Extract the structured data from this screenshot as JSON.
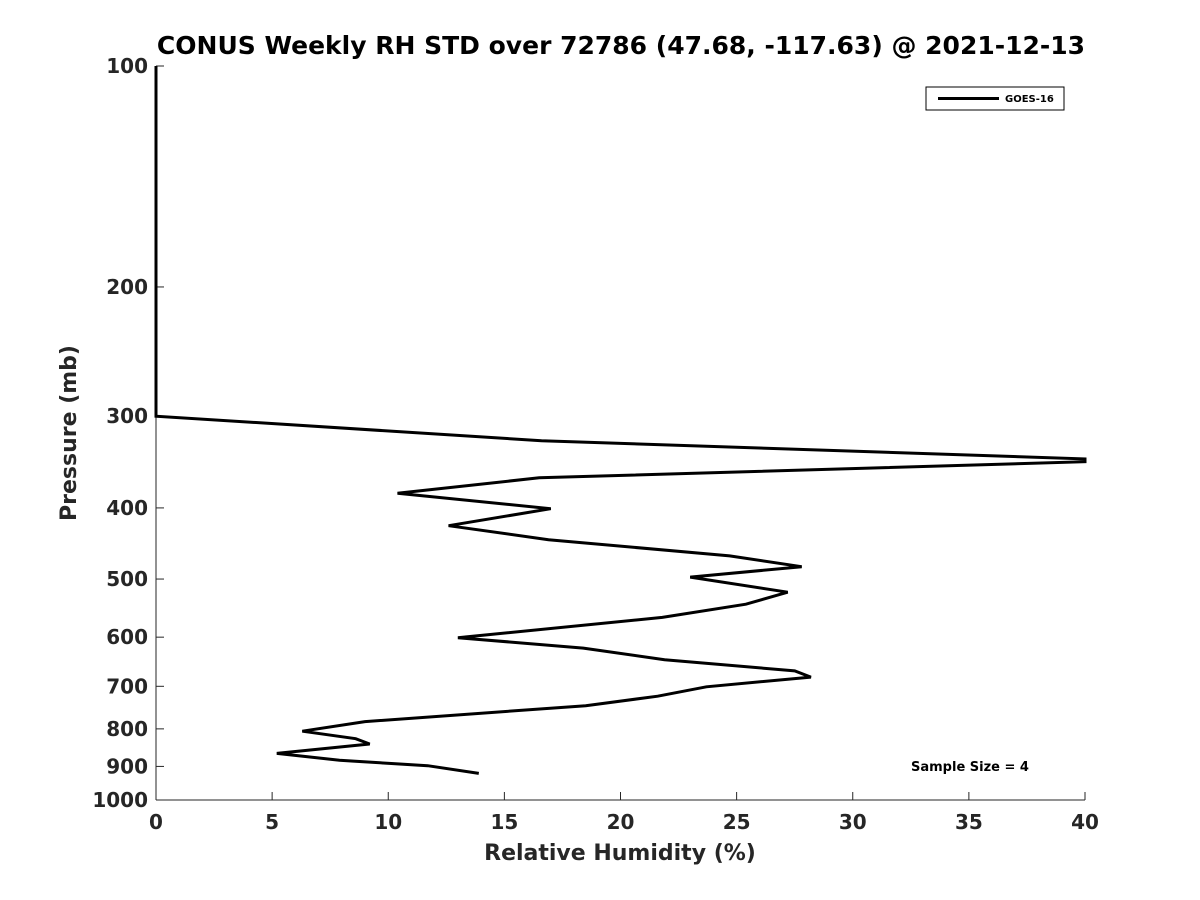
{
  "chart_data": {
    "type": "line",
    "title": "CONUS Weekly RH STD over 72786 (47.68, -117.63) @ 2021-12-13",
    "xlabel": "Relative Humidity (%)",
    "ylabel": "Pressure (mb)",
    "xlim": [
      0,
      40
    ],
    "ylim": [
      100,
      1000
    ],
    "y_scale": "log",
    "y_reversed": true,
    "x_ticks": [
      0,
      5,
      10,
      15,
      20,
      25,
      30,
      35,
      40
    ],
    "y_ticks": [
      100,
      200,
      300,
      400,
      500,
      600,
      700,
      800,
      900,
      1000
    ],
    "grid": false,
    "legend_position": "top-right",
    "annotation": "Sample Size = 4",
    "series": [
      {
        "name": "GOES-16",
        "color": "#000000",
        "points": [
          [
            0,
            100
          ],
          [
            0,
            150
          ],
          [
            0,
            200
          ],
          [
            0,
            250
          ],
          [
            0,
            300
          ],
          [
            16.6,
            324
          ],
          [
            40,
            343
          ],
          [
            40,
            346
          ],
          [
            16.5,
            364
          ],
          [
            10.4,
            382
          ],
          [
            17.0,
            401
          ],
          [
            12.6,
            423
          ],
          [
            16.9,
            442
          ],
          [
            24.7,
            465
          ],
          [
            27.8,
            481
          ],
          [
            23.0,
            497
          ],
          [
            27.2,
            521
          ],
          [
            25.4,
            541
          ],
          [
            21.8,
            564
          ],
          [
            13.0,
            601
          ],
          [
            18.4,
            621
          ],
          [
            21.9,
            644
          ],
          [
            27.5,
            667
          ],
          [
            28.2,
            680
          ],
          [
            23.7,
            701
          ],
          [
            21.6,
            722
          ],
          [
            18.5,
            744
          ],
          [
            9.0,
            782
          ],
          [
            6.3,
            806
          ],
          [
            8.6,
            825
          ],
          [
            9.2,
            839
          ],
          [
            5.2,
            864
          ],
          [
            7.9,
            883
          ],
          [
            11.7,
            898
          ],
          [
            13.9,
            920
          ]
        ]
      }
    ]
  }
}
